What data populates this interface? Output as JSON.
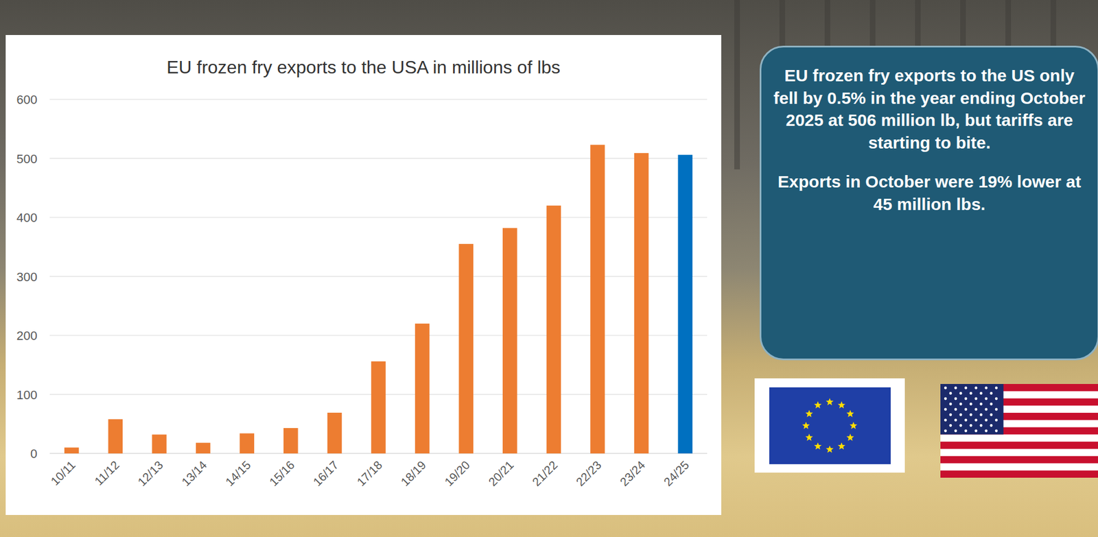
{
  "chart_data": {
    "type": "bar",
    "title": "EU frozen fry exports to the USA in millions of lbs",
    "categories": [
      "10/11",
      "11/12",
      "12/13",
      "13/14",
      "14/15",
      "15/16",
      "16/17",
      "17/18",
      "18/19",
      "19/20",
      "20/21",
      "21/22",
      "22/23",
      "23/24",
      "24/25"
    ],
    "values": [
      10,
      58,
      32,
      18,
      34,
      43,
      69,
      156,
      220,
      355,
      382,
      420,
      523,
      509,
      506
    ],
    "colors": [
      "#ed7d31",
      "#ed7d31",
      "#ed7d31",
      "#ed7d31",
      "#ed7d31",
      "#ed7d31",
      "#ed7d31",
      "#ed7d31",
      "#ed7d31",
      "#ed7d31",
      "#ed7d31",
      "#ed7d31",
      "#ed7d31",
      "#ed7d31",
      "#0070c0"
    ],
    "ylim": [
      0,
      600
    ],
    "yticks": [
      0,
      100,
      200,
      300,
      400,
      500,
      600
    ],
    "grid": true,
    "annotations": [
      "EU frozen fry exports to the US only fell by 0.5% in the year ending October 2025 at 506 million lb, but tariffs are starting to bite.",
      "Exports in October were 19% lower at 45 million lbs."
    ]
  }
}
